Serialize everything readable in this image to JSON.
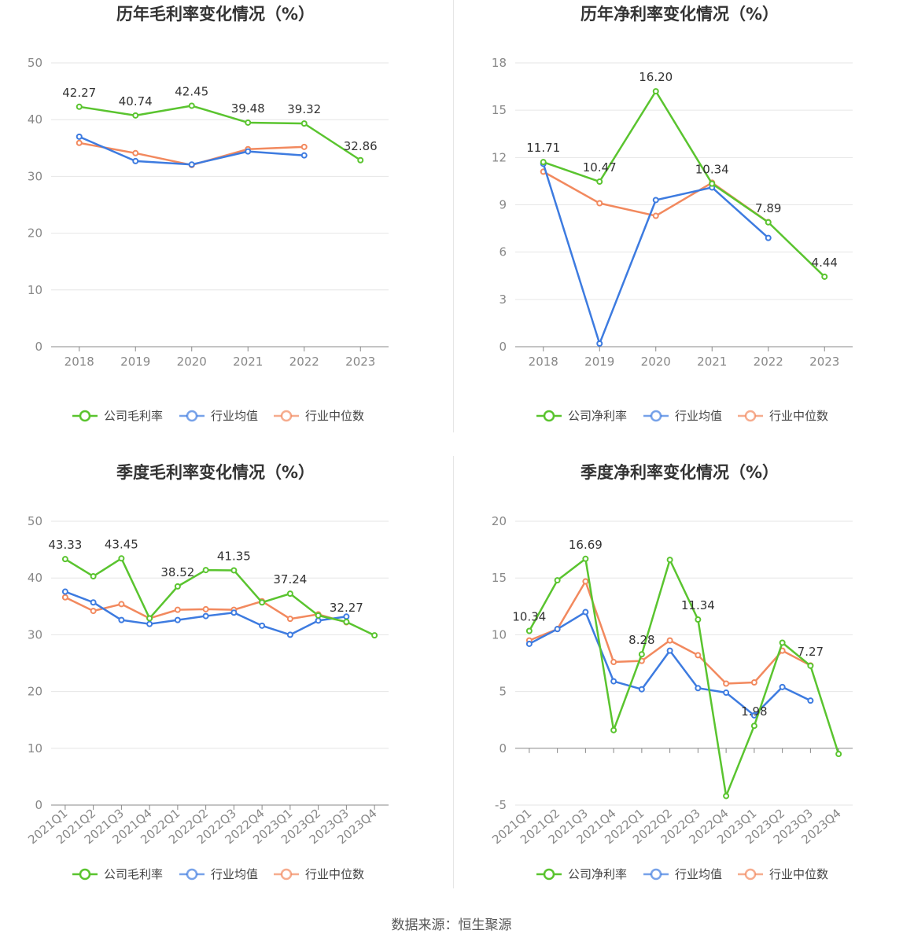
{
  "source_text": "数据来源：恒生聚源",
  "chart_data": [
    {
      "type": "line",
      "title": "历年毛利率变化情况（%）",
      "categories": [
        "2018",
        "2019",
        "2020",
        "2021",
        "2022",
        "2023"
      ],
      "ylim": [
        0,
        50
      ],
      "yticks": [
        0,
        10,
        20,
        30,
        40,
        50
      ],
      "grid": true,
      "legend_placement": "bottom",
      "series": [
        {
          "name": "公司毛利率",
          "color": "#5ac42f",
          "values": [
            42.27,
            40.74,
            42.45,
            39.48,
            39.32,
            32.86
          ],
          "labels": [
            "42.27",
            "40.74",
            "42.45",
            "39.48",
            "39.32",
            "32.86"
          ]
        },
        {
          "name": "行业均值",
          "color": "#3d7be0",
          "values": [
            37.0,
            32.7,
            32.1,
            34.4,
            33.7,
            null
          ]
        },
        {
          "name": "行业中位数",
          "color": "#f2895e",
          "values": [
            35.9,
            34.1,
            32.0,
            34.8,
            35.2,
            null
          ]
        }
      ]
    },
    {
      "type": "line",
      "title": "历年净利率变化情况（%）",
      "categories": [
        "2018",
        "2019",
        "2020",
        "2021",
        "2022",
        "2023"
      ],
      "ylim": [
        0,
        18
      ],
      "yticks": [
        0,
        3,
        6,
        9,
        12,
        15,
        18
      ],
      "grid": true,
      "legend_placement": "bottom",
      "series": [
        {
          "name": "公司净利率",
          "color": "#5ac42f",
          "values": [
            11.71,
            10.47,
            16.2,
            10.34,
            7.89,
            4.44
          ],
          "labels": [
            "11.71",
            "10.47",
            "16.20",
            "10.34",
            "7.89",
            "4.44"
          ]
        },
        {
          "name": "行业均值",
          "color": "#3d7be0",
          "values": [
            11.6,
            0.2,
            9.3,
            10.1,
            6.9,
            null
          ]
        },
        {
          "name": "行业中位数",
          "color": "#f2895e",
          "values": [
            11.1,
            9.1,
            8.3,
            10.4,
            7.9,
            null
          ]
        }
      ]
    },
    {
      "type": "line",
      "title": "季度毛利率变化情况（%）",
      "categories": [
        "2021Q1",
        "2021Q2",
        "2021Q3",
        "2021Q4",
        "2022Q1",
        "2022Q2",
        "2022Q3",
        "2022Q4",
        "2023Q1",
        "2023Q2",
        "2023Q3",
        "2023Q4"
      ],
      "ylim": [
        0,
        50
      ],
      "yticks": [
        0,
        10,
        20,
        30,
        40,
        50
      ],
      "grid": true,
      "legend_placement": "bottom",
      "series": [
        {
          "name": "公司毛利率",
          "color": "#5ac42f",
          "values": [
            43.33,
            40.3,
            43.45,
            32.9,
            38.52,
            41.4,
            41.35,
            35.7,
            37.24,
            33.4,
            32.27,
            29.9
          ],
          "labels": [
            "43.33",
            "",
            "43.45",
            "",
            "38.52",
            "",
            "41.35",
            "",
            "37.24",
            "",
            "32.27",
            ""
          ]
        },
        {
          "name": "行业均值",
          "color": "#3d7be0",
          "values": [
            37.6,
            35.7,
            32.6,
            31.9,
            32.6,
            33.3,
            33.9,
            31.6,
            30.0,
            32.5,
            33.2,
            null
          ]
        },
        {
          "name": "行业中位数",
          "color": "#f2895e",
          "values": [
            36.6,
            34.2,
            35.4,
            32.9,
            34.4,
            34.5,
            34.4,
            35.9,
            32.8,
            33.6,
            32.2,
            null
          ]
        }
      ]
    },
    {
      "type": "line",
      "title": "季度净利率变化情况（%）",
      "categories": [
        "2021Q1",
        "2021Q2",
        "2021Q3",
        "2021Q4",
        "2022Q1",
        "2022Q2",
        "2022Q3",
        "2022Q4",
        "2023Q1",
        "2023Q2",
        "2023Q3",
        "2023Q4"
      ],
      "ylim": [
        -5,
        20
      ],
      "yticks": [
        -5,
        0,
        5,
        10,
        15,
        20
      ],
      "grid": true,
      "legend_placement": "bottom",
      "series": [
        {
          "name": "公司净利率",
          "color": "#5ac42f",
          "values": [
            10.34,
            14.8,
            16.69,
            1.6,
            8.28,
            16.6,
            11.34,
            -4.2,
            1.98,
            9.3,
            7.27,
            -0.5
          ],
          "labels": [
            "10.34",
            "",
            "16.69",
            "",
            "8.28",
            "",
            "11.34",
            "",
            "1.98",
            "",
            "7.27",
            ""
          ]
        },
        {
          "name": "行业均值",
          "color": "#3d7be0",
          "values": [
            9.2,
            10.5,
            12.0,
            5.9,
            5.2,
            8.6,
            5.3,
            4.9,
            2.9,
            5.4,
            4.2,
            null
          ]
        },
        {
          "name": "行业中位数",
          "color": "#f2895e",
          "values": [
            9.5,
            10.5,
            14.7,
            7.6,
            7.7,
            9.5,
            8.2,
            5.7,
            5.8,
            8.6,
            7.3,
            null
          ]
        }
      ]
    }
  ]
}
